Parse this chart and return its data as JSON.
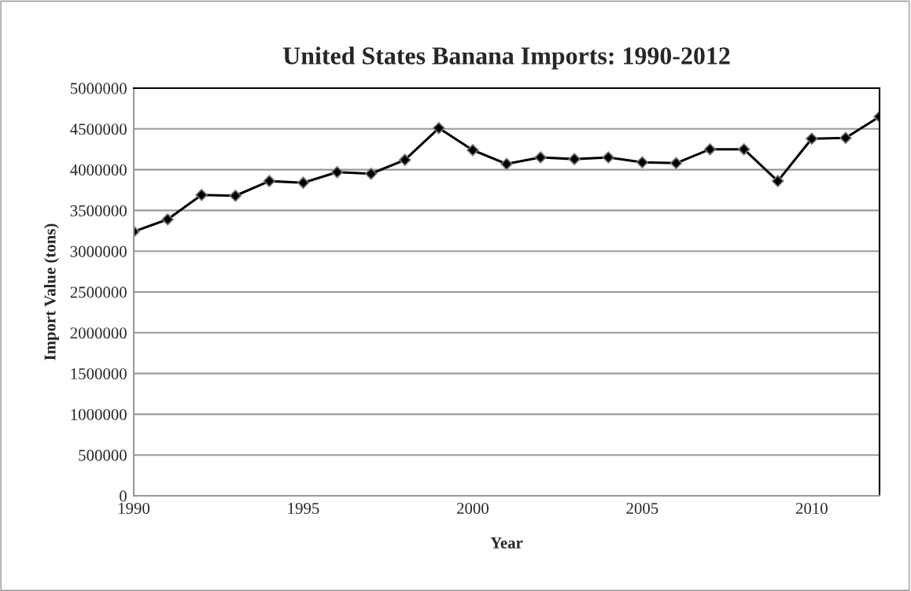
{
  "chart_data": {
    "type": "line",
    "title": "United States Banana Imports: 1990-2012",
    "xlabel": "Year",
    "ylabel": "Import Value (tons)",
    "x": [
      1990,
      1991,
      1992,
      1993,
      1994,
      1995,
      1996,
      1997,
      1998,
      1999,
      2000,
      2001,
      2002,
      2003,
      2004,
      2005,
      2006,
      2007,
      2008,
      2009,
      2010,
      2011,
      2012
    ],
    "series": [
      {
        "color": "#000000",
        "values": [
          3240000,
          3390000,
          3690000,
          3680000,
          3860000,
          3840000,
          3970000,
          3950000,
          4120000,
          4510000,
          4240000,
          4070000,
          4150000,
          4130000,
          4150000,
          4090000,
          4080000,
          4250000,
          4250000,
          3860000,
          4380000,
          4390000,
          4650000
        ]
      }
    ],
    "xlim": [
      1990,
      2012
    ],
    "xticks": [
      1990,
      1995,
      2000,
      2005,
      2010
    ],
    "ylim": [
      0,
      5000000
    ],
    "yticks": [
      0,
      500000,
      1000000,
      1500000,
      2000000,
      2500000,
      3000000,
      3500000,
      4000000,
      4500000,
      5000000
    ],
    "grid": "y",
    "marker": "diamond",
    "line_style": "solid",
    "legend": false
  }
}
